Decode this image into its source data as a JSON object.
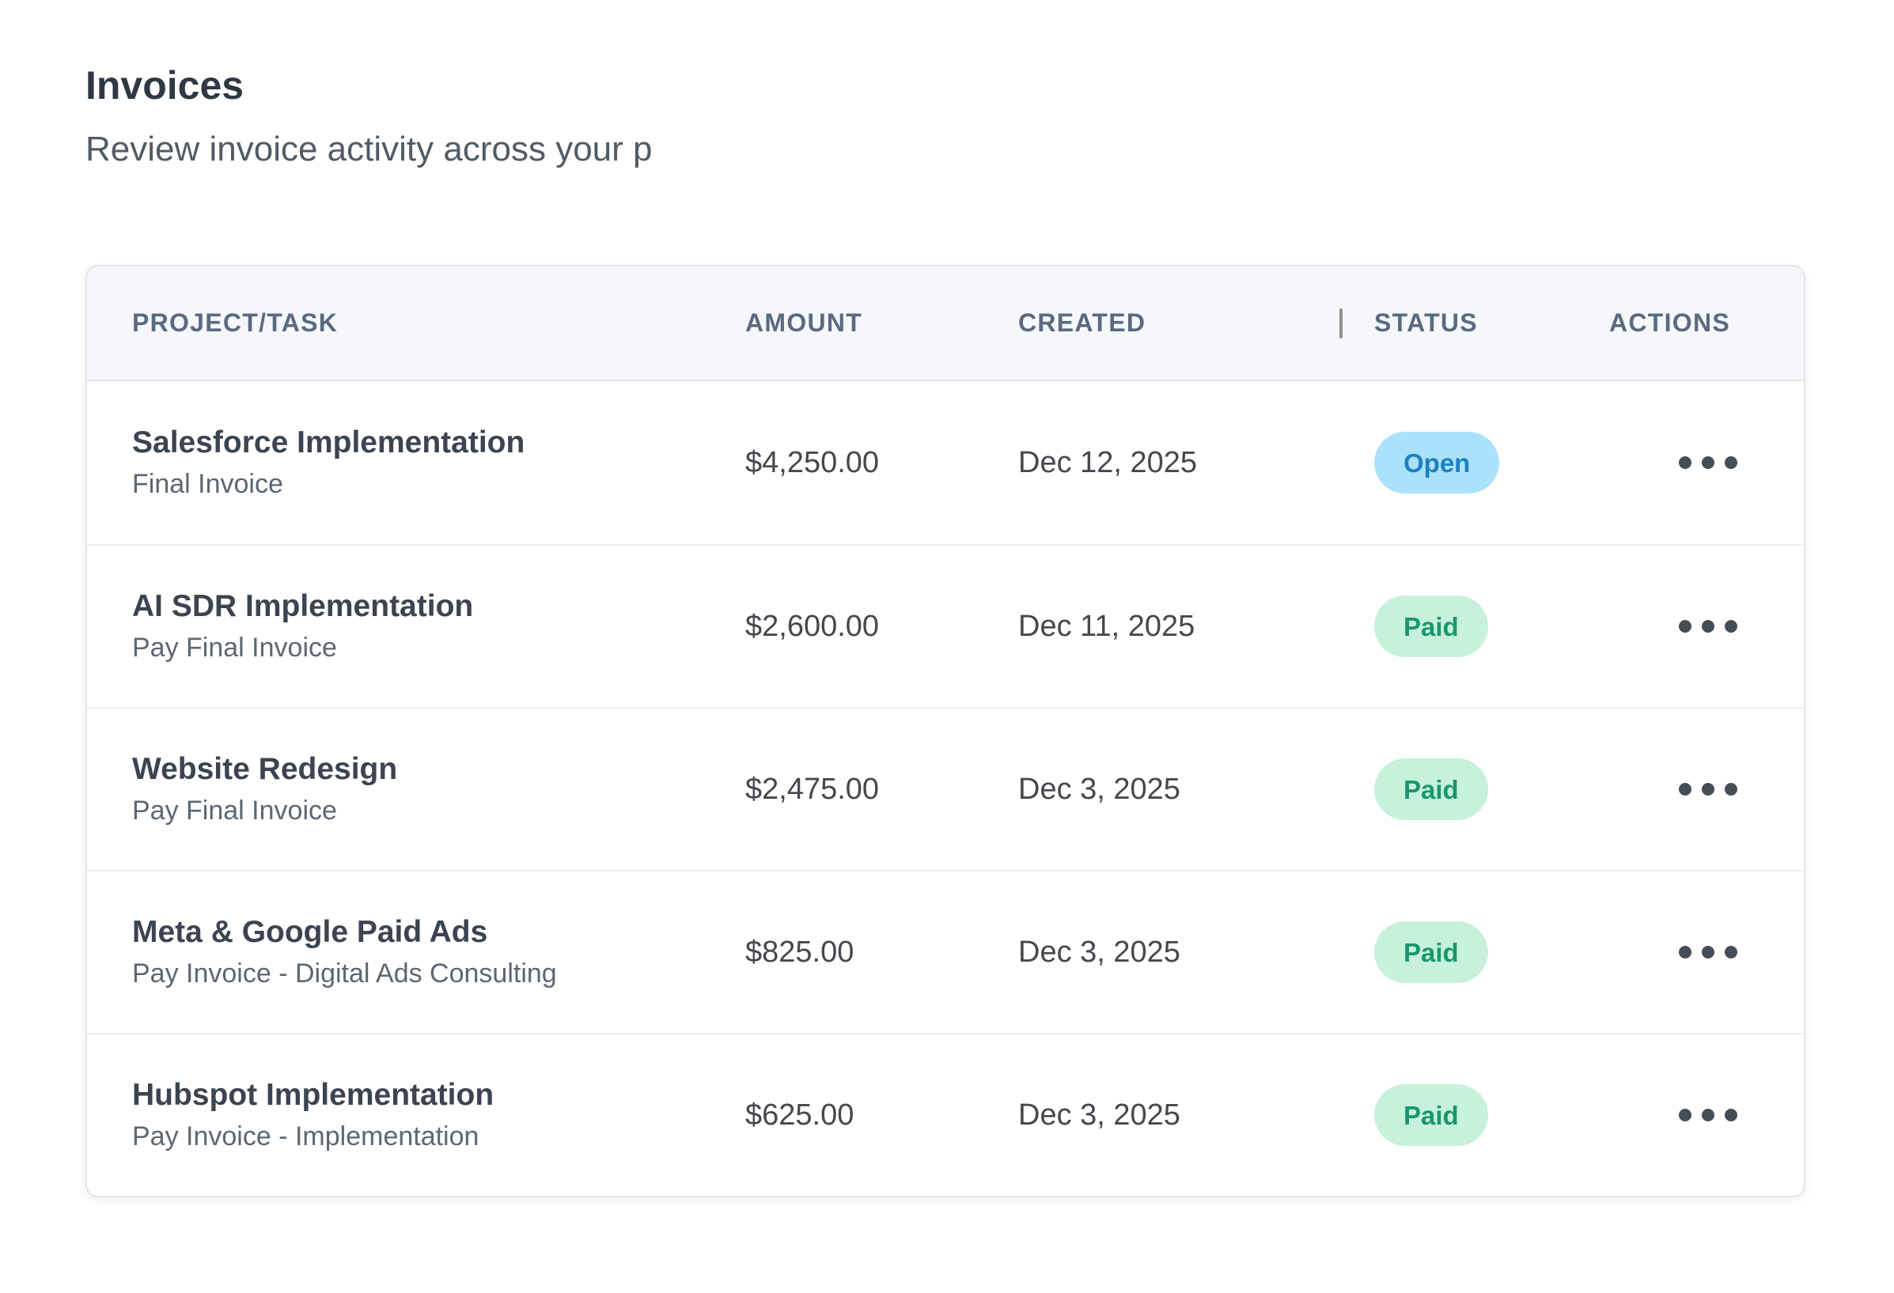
{
  "page": {
    "title": "Invoices",
    "subtitle": "Review invoice activity across your p"
  },
  "table": {
    "columns": [
      "PROJECT/TASK",
      "AMOUNT",
      "CREATED",
      "STATUS",
      "ACTIONS"
    ],
    "rows": [
      {
        "project": "Salesforce Implementation",
        "task": "Final Invoice",
        "amount": "$4,250.00",
        "created": "Dec 12, 2025",
        "status": "Open"
      },
      {
        "project": "AI SDR Implementation",
        "task": "Pay Final Invoice",
        "amount": "$2,600.00",
        "created": "Dec 11, 2025",
        "status": "Paid"
      },
      {
        "project": "Website Redesign",
        "task": "Pay Final Invoice",
        "amount": "$2,475.00",
        "created": "Dec 3, 2025",
        "status": "Paid"
      },
      {
        "project": "Meta & Google Paid Ads",
        "task": "Pay Invoice - Digital Ads Consulting",
        "amount": "$825.00",
        "created": "Dec 3, 2025",
        "status": "Paid"
      },
      {
        "project": "Hubspot Implementation",
        "task": "Pay Invoice - Implementation",
        "amount": "$625.00",
        "created": "Dec 3, 2025",
        "status": "Paid"
      }
    ],
    "actions_icon": "ellipsis-icon",
    "status_colors": {
      "Open": {
        "bg": "#aae2fb",
        "text": "#1d7fc1"
      },
      "Paid": {
        "bg": "#c7f1da",
        "text": "#17976d"
      }
    }
  }
}
